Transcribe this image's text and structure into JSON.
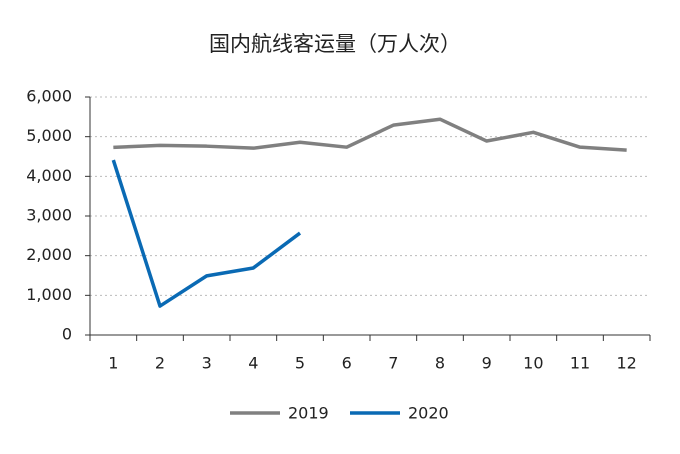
{
  "chart_data": {
    "type": "line",
    "title": "国内航线客运量（万人次）",
    "categories": [
      "1",
      "2",
      "3",
      "4",
      "5",
      "6",
      "7",
      "8",
      "9",
      "10",
      "11",
      "12"
    ],
    "series": [
      {
        "name": "2019",
        "color": "#808080",
        "values": [
          4730,
          4780,
          4760,
          4710,
          4860,
          4735,
          5290,
          5440,
          4890,
          5110,
          4735,
          4660
        ]
      },
      {
        "name": "2020",
        "color": "#0a6ab4",
        "values": [
          4410,
          730,
          1490,
          1690,
          2570,
          null,
          null,
          null,
          null,
          null,
          null,
          null
        ]
      }
    ],
    "ylim": [
      0,
      6000
    ],
    "yticks": [
      0,
      {
        "value": 1000,
        "label": "1,000"
      },
      {
        "value": 2000,
        "label": "2,000"
      },
      {
        "value": 3000,
        "label": "3,000"
      },
      {
        "value": 4000,
        "label": "4,000"
      },
      {
        "value": 5000,
        "label": "5,000"
      },
      {
        "value": 6000,
        "label": "6,000"
      }
    ],
    "grid": true,
    "legend": "bottom"
  }
}
